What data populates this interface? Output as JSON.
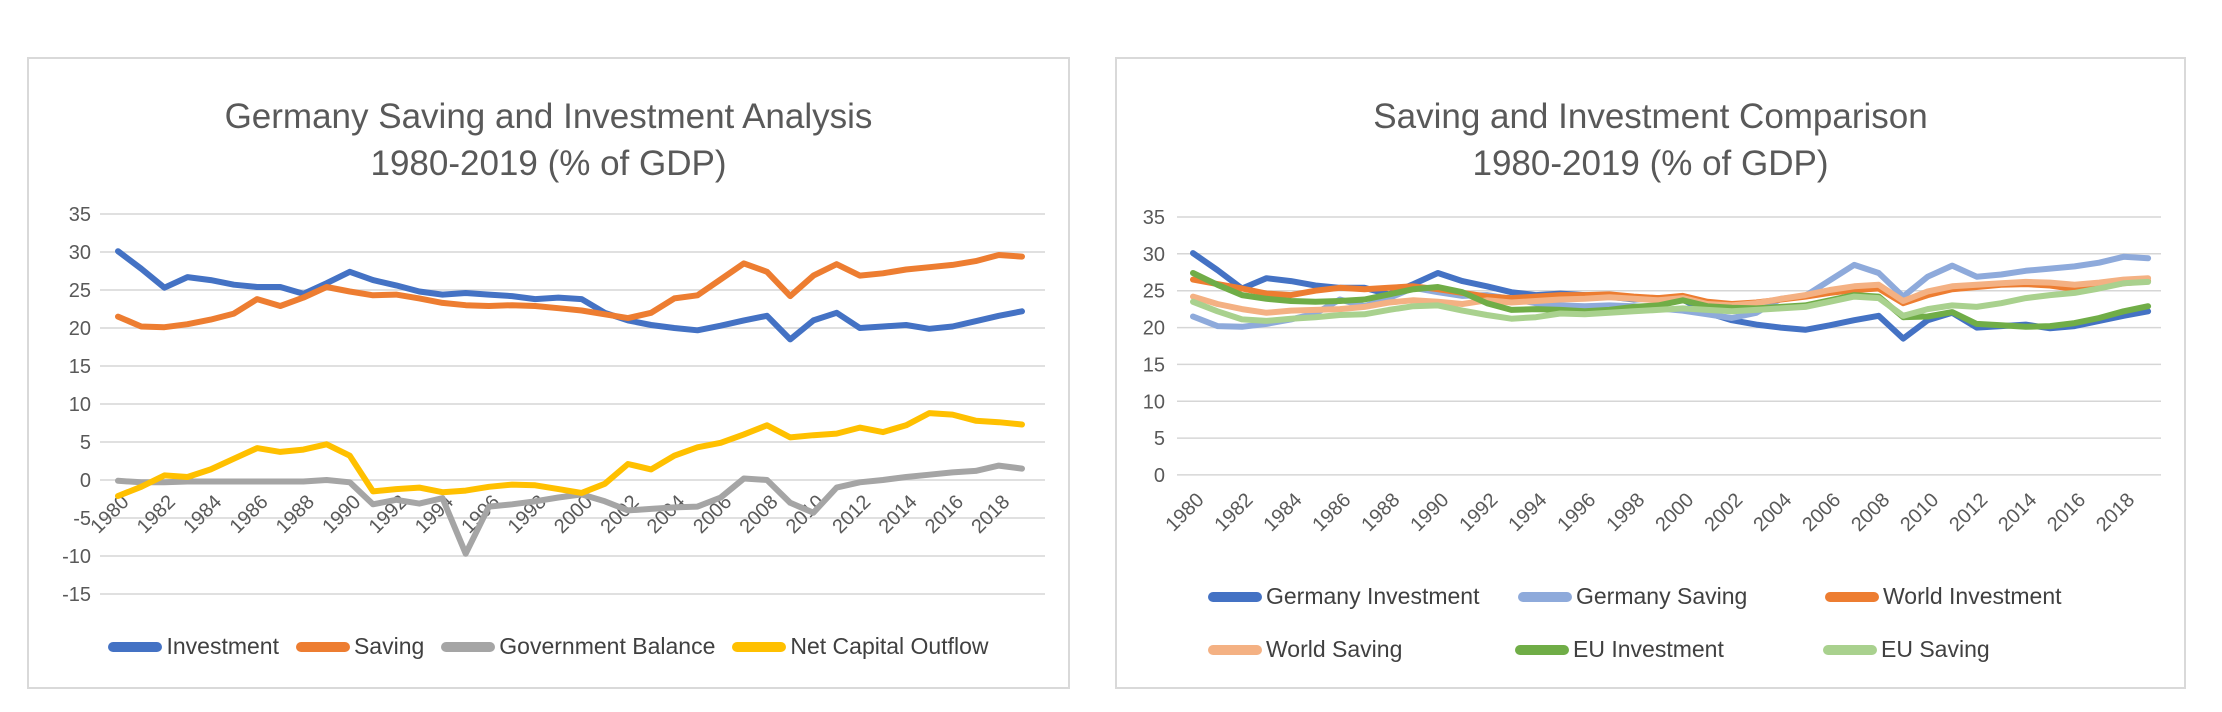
{
  "page": {
    "background": "#ffffff",
    "grid": true,
    "legend_position": "bottom"
  },
  "chart_data": [
    {
      "type": "line",
      "title": "Germany Saving and Investment Analysis",
      "subtitle": "1980-2019 (% of GDP)",
      "xlabel": "",
      "ylabel": "",
      "ylim": [
        -15,
        35
      ],
      "ytick_step": 5,
      "grid": true,
      "legend_position": "bottom",
      "x": [
        1980,
        1981,
        1982,
        1983,
        1984,
        1985,
        1986,
        1987,
        1988,
        1989,
        1990,
        1991,
        1992,
        1993,
        1994,
        1995,
        1996,
        1997,
        1998,
        1999,
        2000,
        2001,
        2002,
        2003,
        2004,
        2005,
        2006,
        2007,
        2008,
        2009,
        2010,
        2011,
        2012,
        2013,
        2014,
        2015,
        2016,
        2017,
        2018,
        2019
      ],
      "x_tick_labels": [
        "1980",
        "1982",
        "1984",
        "1986",
        "1988",
        "1990",
        "1992",
        "1994",
        "1996",
        "1998",
        "2000",
        "2002",
        "2004",
        "2006",
        "2008",
        "2010",
        "2012",
        "2014",
        "2016",
        "2018"
      ],
      "series": [
        {
          "name": "Investment",
          "color": "#4472C4",
          "values": [
            30.1,
            27.8,
            25.3,
            26.7,
            26.3,
            25.7,
            25.4,
            25.4,
            24.5,
            25.9,
            27.4,
            26.3,
            25.6,
            24.8,
            24.4,
            24.6,
            24.4,
            24.2,
            23.8,
            24.0,
            23.8,
            22.0,
            21.0,
            20.4,
            20.0,
            19.7,
            20.3,
            21.0,
            21.6,
            18.5,
            21.0,
            22.0,
            20.0,
            20.2,
            20.4,
            19.9,
            20.2,
            20.9,
            21.6,
            22.2
          ]
        },
        {
          "name": "Saving",
          "color": "#ED7D31",
          "values": [
            21.5,
            20.2,
            20.1,
            20.5,
            21.1,
            21.9,
            23.8,
            22.9,
            24.0,
            25.4,
            24.8,
            24.3,
            24.4,
            23.9,
            23.3,
            23.0,
            22.9,
            23.0,
            22.9,
            22.6,
            22.3,
            21.8,
            21.3,
            22.0,
            23.9,
            24.3,
            26.4,
            28.5,
            27.4,
            24.2,
            26.9,
            28.4,
            26.9,
            27.2,
            27.7,
            28.0,
            28.3,
            28.8,
            29.6,
            29.4
          ]
        },
        {
          "name": "Government Balance",
          "color": "#A5A5A5",
          "values": [
            -0.1,
            -0.3,
            -0.3,
            -0.2,
            -0.2,
            -0.2,
            -0.2,
            -0.2,
            -0.2,
            0.0,
            -0.3,
            -3.2,
            -2.6,
            -3.1,
            -2.4,
            -9.7,
            -3.5,
            -3.2,
            -2.8,
            -2.3,
            -1.9,
            -2.8,
            -4.0,
            -3.8,
            -3.6,
            -3.5,
            -2.3,
            0.2,
            0.0,
            -3.0,
            -4.3,
            -1.0,
            -0.3,
            0.0,
            0.4,
            0.7,
            1.0,
            1.2,
            1.9,
            1.5
          ]
        },
        {
          "name": "Net Capital Outflow",
          "color": "#FFC000",
          "values": [
            -2.1,
            -0.9,
            0.6,
            0.4,
            1.4,
            2.8,
            4.2,
            3.7,
            4.0,
            4.7,
            3.2,
            -1.5,
            -1.2,
            -1.0,
            -1.6,
            -1.4,
            -0.9,
            -0.6,
            -0.7,
            -1.2,
            -1.7,
            -0.5,
            2.1,
            1.4,
            3.2,
            4.3,
            4.9,
            6.0,
            7.2,
            5.6,
            5.9,
            6.1,
            6.9,
            6.3,
            7.2,
            8.8,
            8.6,
            7.8,
            7.6,
            7.3
          ]
        }
      ]
    },
    {
      "type": "line",
      "title": "Saving and Investment Comparison",
      "subtitle": "1980-2019 (% of GDP)",
      "xlabel": "",
      "ylabel": "",
      "ylim": [
        0,
        35
      ],
      "ytick_step": 5,
      "grid": true,
      "legend_position": "bottom",
      "x": [
        1980,
        1981,
        1982,
        1983,
        1984,
        1985,
        1986,
        1987,
        1988,
        1989,
        1990,
        1991,
        1992,
        1993,
        1994,
        1995,
        1996,
        1997,
        1998,
        1999,
        2000,
        2001,
        2002,
        2003,
        2004,
        2005,
        2006,
        2007,
        2008,
        2009,
        2010,
        2011,
        2012,
        2013,
        2014,
        2015,
        2016,
        2017,
        2018,
        2019
      ],
      "x_tick_labels": [
        "1980",
        "1982",
        "1984",
        "1986",
        "1988",
        "1990",
        "1992",
        "1994",
        "1996",
        "1998",
        "2000",
        "2002",
        "2004",
        "2006",
        "2008",
        "2010",
        "2012",
        "2014",
        "2016",
        "2018"
      ],
      "series": [
        {
          "name": "Germany Investment",
          "color": "#4472C4",
          "values": [
            30.1,
            27.8,
            25.3,
            26.7,
            26.3,
            25.7,
            25.4,
            25.4,
            24.5,
            25.9,
            27.4,
            26.3,
            25.6,
            24.8,
            24.4,
            24.6,
            24.4,
            24.2,
            23.8,
            24.0,
            23.8,
            22.0,
            21.0,
            20.4,
            20.0,
            19.7,
            20.3,
            21.0,
            21.6,
            18.5,
            21.0,
            22.0,
            20.0,
            20.2,
            20.4,
            19.9,
            20.2,
            20.9,
            21.6,
            22.2
          ]
        },
        {
          "name": "Germany Saving",
          "color": "#8EAADB",
          "values": [
            21.5,
            20.2,
            20.1,
            20.5,
            21.1,
            21.9,
            23.8,
            22.9,
            24.0,
            25.4,
            24.8,
            24.3,
            24.4,
            23.9,
            23.3,
            23.0,
            22.9,
            23.0,
            22.9,
            22.6,
            22.3,
            21.8,
            21.3,
            22.0,
            23.9,
            24.3,
            26.4,
            28.5,
            27.4,
            24.2,
            26.9,
            28.4,
            26.9,
            27.2,
            27.7,
            28.0,
            28.3,
            28.8,
            29.6,
            29.4
          ]
        },
        {
          "name": "World Investment",
          "color": "#ED7D31",
          "values": [
            26.5,
            25.9,
            25.3,
            24.6,
            24.4,
            25.0,
            25.4,
            25.2,
            25.4,
            25.6,
            25.2,
            24.7,
            24.2,
            24.0,
            24.2,
            24.4,
            24.4,
            24.5,
            24.2,
            24.0,
            24.3,
            23.5,
            23.2,
            23.4,
            23.8,
            24.2,
            24.7,
            25.1,
            25.3,
            23.3,
            24.4,
            25.2,
            25.5,
            25.8,
            25.9,
            25.7,
            25.2,
            25.5,
            26.0,
            26.3
          ]
        },
        {
          "name": "World Saving",
          "color": "#F4B183",
          "values": [
            24.2,
            23.2,
            22.5,
            22.0,
            22.3,
            22.4,
            22.5,
            22.8,
            23.4,
            23.7,
            23.5,
            23.2,
            23.7,
            23.4,
            23.6,
            23.8,
            23.9,
            24.1,
            23.9,
            23.7,
            24.0,
            23.2,
            23.0,
            23.3,
            23.9,
            24.4,
            25.1,
            25.6,
            25.8,
            23.6,
            24.9,
            25.6,
            25.8,
            26.0,
            26.2,
            26.1,
            25.8,
            26.1,
            26.5,
            26.7
          ]
        },
        {
          "name": "EU Investment",
          "color": "#70AD47",
          "values": [
            27.4,
            25.8,
            24.4,
            23.9,
            23.6,
            23.5,
            23.6,
            23.8,
            24.5,
            25.2,
            25.5,
            24.8,
            23.3,
            22.4,
            22.5,
            22.4,
            22.2,
            22.4,
            22.8,
            23.0,
            23.7,
            22.9,
            22.7,
            22.6,
            22.8,
            23.0,
            23.7,
            24.4,
            24.2,
            21.4,
            21.5,
            22.1,
            20.5,
            20.3,
            20.1,
            20.2,
            20.6,
            21.3,
            22.2,
            22.9
          ]
        },
        {
          "name": "EU Saving",
          "color": "#A9D18E",
          "values": [
            23.5,
            22.2,
            21.1,
            20.9,
            21.2,
            21.4,
            21.7,
            21.8,
            22.4,
            22.9,
            23.0,
            22.3,
            21.7,
            21.2,
            21.4,
            21.9,
            21.8,
            22.0,
            22.2,
            22.4,
            22.6,
            22.4,
            22.2,
            22.4,
            22.6,
            22.8,
            23.5,
            24.2,
            24.0,
            21.6,
            22.5,
            23.0,
            22.8,
            23.3,
            24.0,
            24.4,
            24.7,
            25.3,
            26.0,
            26.2
          ]
        }
      ]
    }
  ]
}
